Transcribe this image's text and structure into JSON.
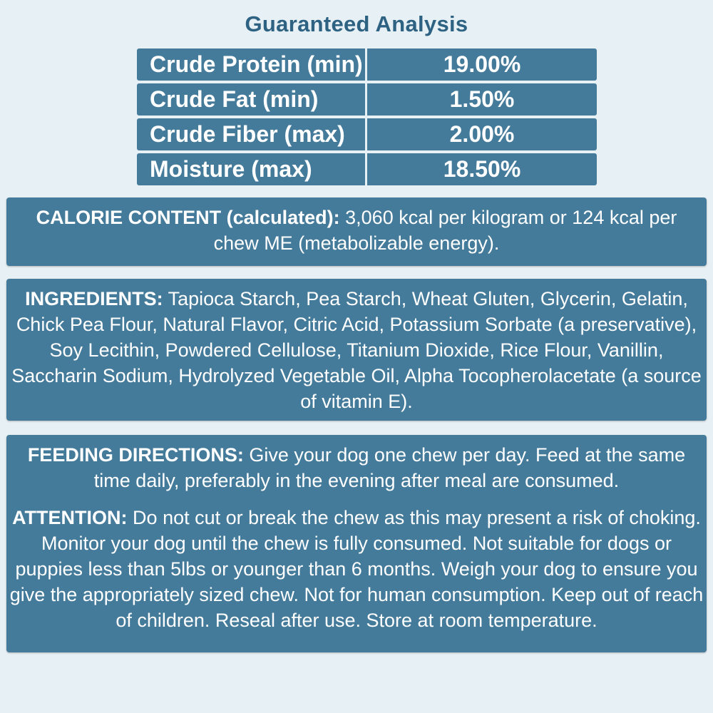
{
  "title": "Guaranteed Analysis",
  "analysis": [
    {
      "name": "Crude Protein (min)",
      "value": "19.00%"
    },
    {
      "name": "Crude Fat (min)",
      "value": "1.50%"
    },
    {
      "name": "Crude Fiber (max)",
      "value": "2.00%"
    },
    {
      "name": "Moisture (max)",
      "value": "18.50%"
    }
  ],
  "calorie": {
    "label": "CALORIE CONTENT (calculated):",
    "text": " 3,060 kcal per kilogram or 124 kcal per chew ME (metabolizable energy)."
  },
  "ingredients": {
    "label": "INGREDIENTS:",
    "text": " Tapioca Starch, Pea Starch, Wheat Gluten, Glycerin, Gelatin, Chick Pea Flour, Natural Flavor, Citric Acid, Potassium Sorbate (a preservative), Soy Lecithin, Powdered Cellulose, Titanium Dioxide, Rice Flour, Vanillin, Saccharin Sodium, Hydrolyzed Vegetable Oil, Alpha Tocopherolacetate (a source of vitamin E)."
  },
  "feeding": {
    "label": "FEEDING DIRECTIONS:",
    "text": " Give your dog one chew per day. Feed at the same time daily, preferably in the evening after meal are consumed."
  },
  "attention": {
    "label": "ATTENTION:",
    "text": " Do not cut or break the chew as this may present a risk of choking. Monitor your dog until the chew is fully consumed. Not suitable for dogs or puppies less than 5lbs or younger than 6 months. Weigh your dog to ensure you give the appropriately sized chew. Not for human consumption. Keep out of reach of children. Reseal after use. Store at room temperature."
  },
  "colors": {
    "panel": "#457b9a",
    "title": "#2e6283",
    "background": "#e7f0f4"
  }
}
